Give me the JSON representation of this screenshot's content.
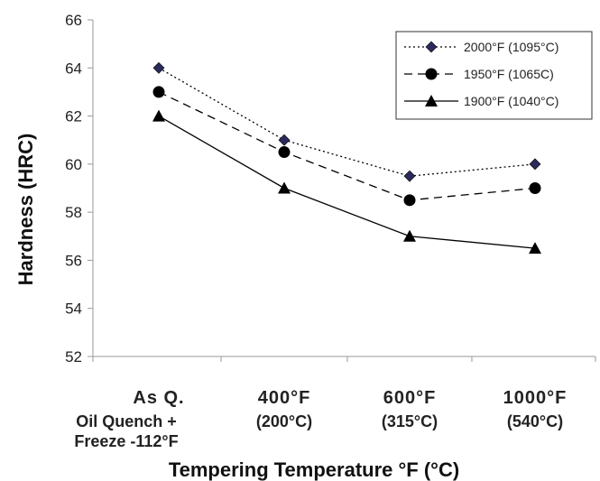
{
  "chart_data": {
    "type": "line",
    "xlabel": "Tempering Temperature °F (°C)",
    "ylabel": "Hardness (HRC)",
    "ylim": [
      52,
      66
    ],
    "yticks": [
      52,
      54,
      56,
      58,
      60,
      62,
      64,
      66
    ],
    "grid": false,
    "legend_position": "top-right",
    "categories": [
      {
        "line1": "As Q.",
        "line2": "Oil Quench +",
        "line3": "Freeze -112°F"
      },
      {
        "line1": "400°F",
        "line2": "(200°C)",
        "line3": ""
      },
      {
        "line1": "600°F",
        "line2": "(315°C)",
        "line3": ""
      },
      {
        "line1": "1000°F",
        "line2": "(540°C)",
        "line3": ""
      }
    ],
    "series": [
      {
        "name": "2000°F (1095°C)",
        "values": [
          64,
          61,
          59.5,
          60
        ],
        "marker": "diamond",
        "line_style": "dotted",
        "marker_color": "#2b2a5c"
      },
      {
        "name": "1950°F (1065C)",
        "values": [
          63,
          60.5,
          58.5,
          59
        ],
        "marker": "circle",
        "line_style": "dashed",
        "marker_color": "#000000"
      },
      {
        "name": "1900°F (1040°C)",
        "values": [
          62,
          59,
          57,
          56.5
        ],
        "marker": "triangle",
        "line_style": "solid",
        "marker_color": "#000000"
      }
    ]
  }
}
